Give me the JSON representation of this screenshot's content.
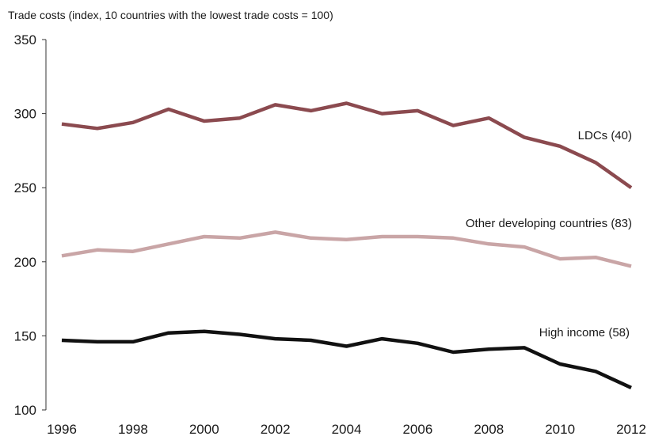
{
  "chart_data": {
    "type": "line",
    "ylabel": "Trade costs (index, 10 countries with the lowest trade costs = 100)",
    "xlabel": "",
    "x": [
      1996,
      1997,
      1998,
      1999,
      2000,
      2001,
      2002,
      2003,
      2004,
      2005,
      2006,
      2007,
      2008,
      2009,
      2010,
      2011,
      2012
    ],
    "x_ticks": [
      "1996",
      "1998",
      "2000",
      "2002",
      "2004",
      "2006",
      "2008",
      "2010",
      "2012"
    ],
    "y_ticks": [
      "100",
      "150",
      "200",
      "250",
      "300",
      "350"
    ],
    "ylim": [
      100,
      350
    ],
    "xlim": [
      1996,
      2012
    ],
    "grid": false,
    "series": [
      {
        "name": "LDCs (40)",
        "color": "#8b4a4f",
        "values": [
          293,
          290,
          294,
          303,
          295,
          297,
          306,
          302,
          307,
          300,
          302,
          292,
          297,
          284,
          278,
          267,
          250
        ]
      },
      {
        "name": "Other developing countries (83)",
        "color": "#c9a5a6",
        "values": [
          204,
          208,
          207,
          212,
          217,
          216,
          220,
          216,
          215,
          217,
          217,
          216,
          212,
          210,
          202,
          203,
          197
        ]
      },
      {
        "name": "High income (58)",
        "color": "#111111",
        "values": [
          147,
          146,
          146,
          152,
          153,
          151,
          148,
          147,
          143,
          148,
          145,
          139,
          141,
          142,
          131,
          126,
          115
        ]
      }
    ]
  }
}
